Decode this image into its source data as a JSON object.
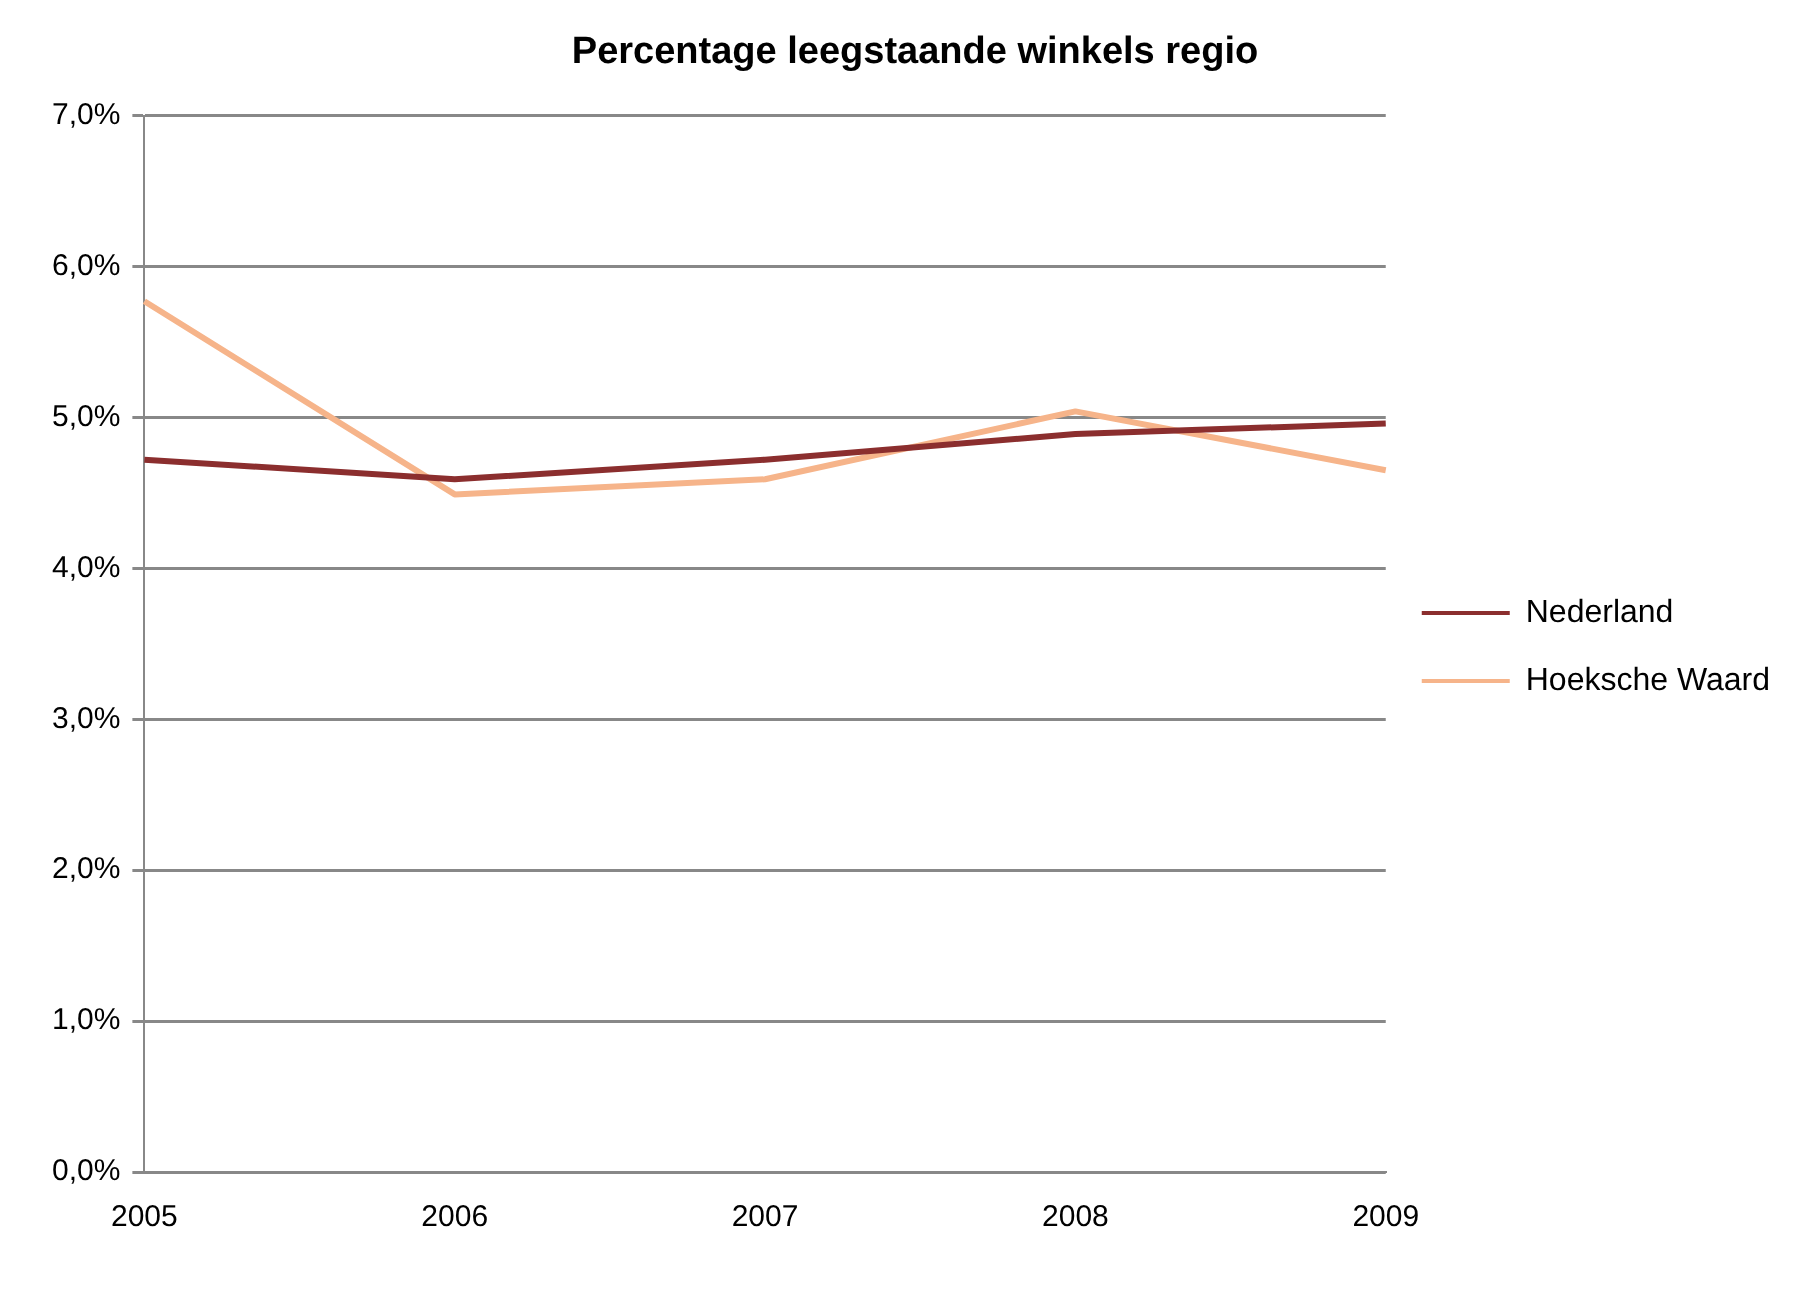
{
  "chart_data": {
    "type": "line",
    "title": "Percentage leegstaande winkels regio",
    "categories": [
      "2005",
      "2006",
      "2007",
      "2008",
      "2009"
    ],
    "series": [
      {
        "name": "Nederland",
        "color": "#8b2e2e",
        "values": [
          4.72,
          4.59,
          4.72,
          4.89,
          4.96
        ]
      },
      {
        "name": "Hoeksche Waard",
        "color": "#f6b48a",
        "values": [
          5.77,
          4.49,
          4.59,
          5.04,
          4.65
        ]
      }
    ],
    "ylim": [
      0,
      7
    ],
    "yticks": [
      {
        "value": 0,
        "label": "0,0%"
      },
      {
        "value": 1,
        "label": "1,0%"
      },
      {
        "value": 2,
        "label": "2,0%"
      },
      {
        "value": 3,
        "label": "3,0%"
      },
      {
        "value": 4,
        "label": "4,0%"
      },
      {
        "value": 5,
        "label": "5,0%"
      },
      {
        "value": 6,
        "label": "6,0%"
      },
      {
        "value": 7,
        "label": "7,0%"
      }
    ],
    "grid": "y",
    "legend": "right",
    "marker": "none",
    "line_style": "solid"
  }
}
